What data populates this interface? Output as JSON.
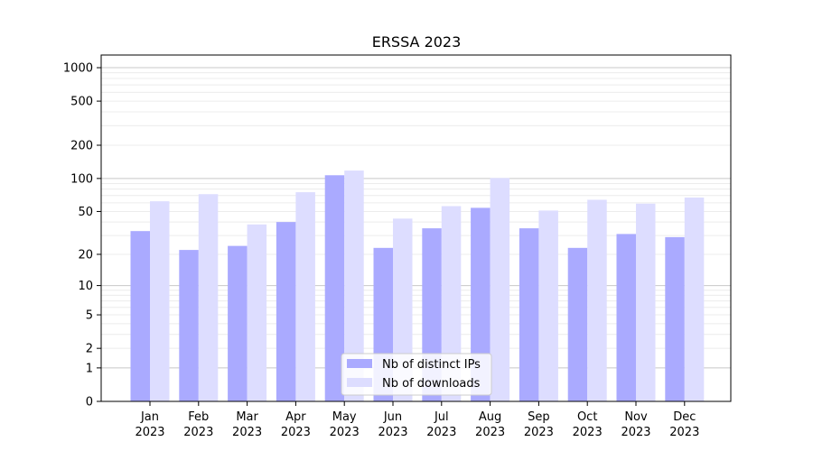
{
  "chart_data": {
    "type": "bar",
    "title": "ERSSA 2023",
    "xlabel": "",
    "ylabel": "",
    "yscale": "symlog",
    "categories": [
      [
        "Jan",
        "2023"
      ],
      [
        "Feb",
        "2023"
      ],
      [
        "Mar",
        "2023"
      ],
      [
        "Apr",
        "2023"
      ],
      [
        "May",
        "2023"
      ],
      [
        "Jun",
        "2023"
      ],
      [
        "Jul",
        "2023"
      ],
      [
        "Aug",
        "2023"
      ],
      [
        "Sep",
        "2023"
      ],
      [
        "Oct",
        "2023"
      ],
      [
        "Nov",
        "2023"
      ],
      [
        "Dec",
        "2023"
      ]
    ],
    "series": [
      {
        "name": "Nb of distinct IPs",
        "color": "#aaaaff",
        "values": [
          33,
          22,
          24,
          40,
          107,
          23,
          35,
          54,
          35,
          23,
          31,
          29
        ]
      },
      {
        "name": "Nb of downloads",
        "color": "#ddddff",
        "values": [
          62,
          72,
          38,
          75,
          118,
          43,
          56,
          101,
          51,
          64,
          59,
          67
        ]
      }
    ],
    "yticks": [
      0,
      1,
      2,
      5,
      10,
      20,
      50,
      100,
      200,
      500,
      1000
    ],
    "ylim": [
      0,
      1300
    ],
    "grid": true,
    "legend_position": "bottom-center"
  }
}
